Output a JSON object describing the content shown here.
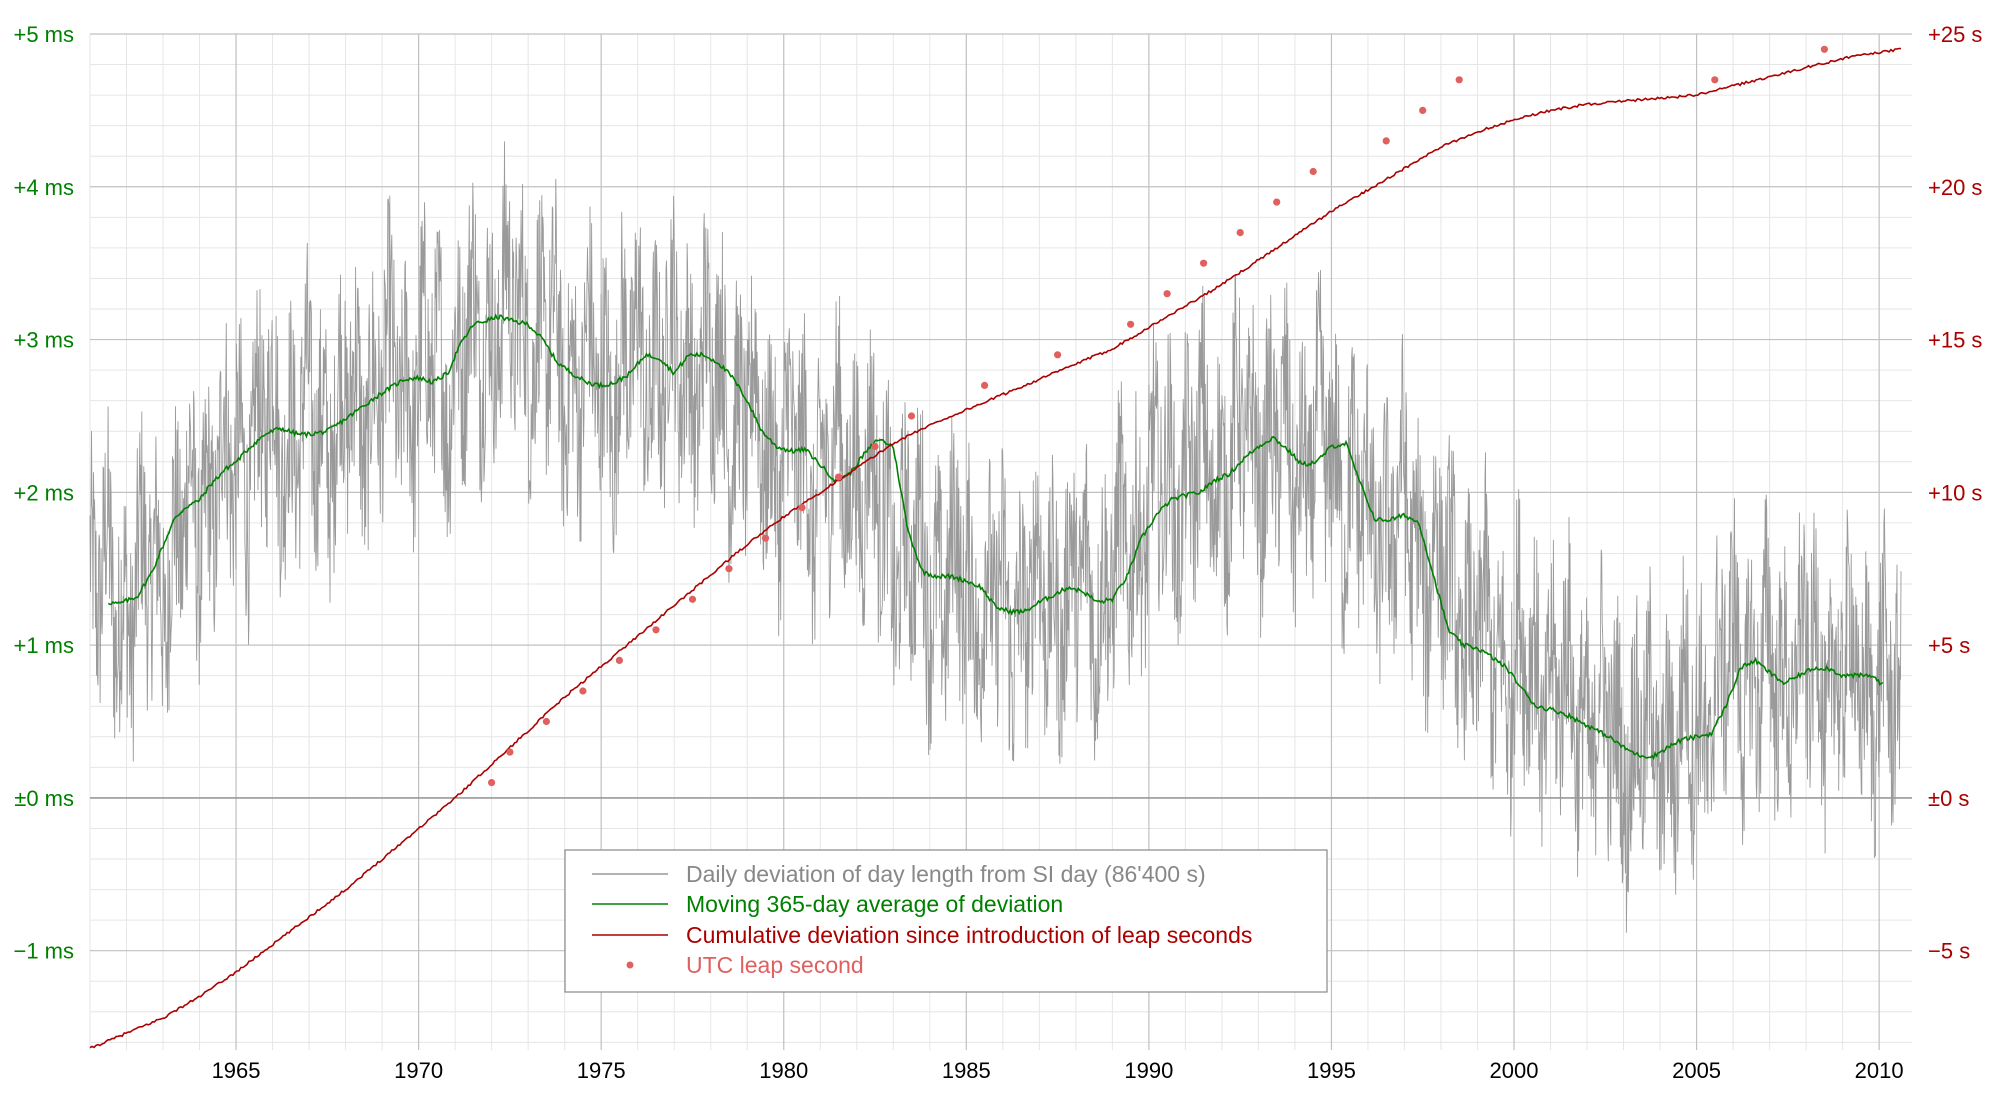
{
  "chart_data": {
    "type": "line",
    "title": "",
    "x_range": [
      1961.0,
      2010.9
    ],
    "x_ticks": [
      "1965",
      "1970",
      "1975",
      "1980",
      "1985",
      "1990",
      "1995",
      "2000",
      "2005",
      "2010"
    ],
    "left_axis": {
      "range": [
        -1.65,
        5.0
      ],
      "unit": "ms",
      "ticks": [
        {
          "v": 5,
          "label": "+5 ms"
        },
        {
          "v": 4,
          "label": "+4 ms"
        },
        {
          "v": 3,
          "label": "+3 ms"
        },
        {
          "v": 2,
          "label": "+2 ms"
        },
        {
          "v": 1,
          "label": "+1 ms"
        },
        {
          "v": 0,
          "label": "±0 ms"
        },
        {
          "v": -1,
          "label": "−1 ms"
        }
      ]
    },
    "right_axis": {
      "range": [
        -8.25,
        25.0
      ],
      "unit": "s",
      "ticks": [
        {
          "v": 25,
          "label": "+25 s"
        },
        {
          "v": 20,
          "label": "+20 s"
        },
        {
          "v": 15,
          "label": "+15 s"
        },
        {
          "v": 10,
          "label": "+10 s"
        },
        {
          "v": 5,
          "label": "+5 s"
        },
        {
          "v": 0,
          "label": "±0 s"
        },
        {
          "v": -5,
          "label": "−5 s"
        }
      ]
    },
    "grid": true,
    "legend_position": "bottom-center",
    "colors": {
      "daily": "#9a9a9a",
      "average": "#008000",
      "cumulative": "#aa0000",
      "leap": "#e06060",
      "grid_minor": "#e6e6e6",
      "grid_major": "#c0c0c0"
    },
    "series": [
      {
        "name": "Daily deviation of day length from SI day (86'400 s)",
        "axis": "left",
        "style": "noisy-line",
        "x": [
          1961.0,
          1962.0,
          1963.0,
          1964.0,
          1965.0,
          1966.0,
          1967.0,
          1968.0,
          1969.0,
          1970.0,
          1971.0,
          1972.0,
          1973.0,
          1974.0,
          1975.0,
          1976.0,
          1977.0,
          1978.0,
          1979.0,
          1980.0,
          1981.0,
          1982.0,
          1983.0,
          1984.0,
          1985.0,
          1986.0,
          1987.0,
          1988.0,
          1989.0,
          1990.0,
          1991.0,
          1992.0,
          1993.0,
          1994.0,
          1995.0,
          1996.0,
          1997.0,
          1998.0,
          1999.0,
          2000.0,
          2001.0,
          2002.0,
          2003.0,
          2004.0,
          2005.0,
          2006.0,
          2007.0,
          2008.0,
          2009.0,
          2010.0,
          2010.6
        ],
        "y": [
          1.4,
          1.3,
          1.5,
          1.9,
          2.2,
          2.45,
          2.4,
          2.5,
          2.7,
          2.75,
          2.85,
          3.15,
          3.1,
          2.8,
          2.7,
          2.85,
          2.85,
          2.8,
          2.45,
          2.25,
          2.1,
          2.2,
          1.7,
          1.45,
          1.4,
          1.2,
          1.3,
          1.35,
          1.4,
          1.95,
          2.1,
          2.2,
          2.35,
          2.2,
          2.25,
          1.8,
          1.8,
          1.45,
          1.0,
          0.9,
          0.75,
          0.55,
          0.35,
          0.35,
          0.45,
          0.9,
          0.8,
          0.85,
          0.8,
          0.75,
          0.5
        ],
        "amplitude_ms": 0.75
      },
      {
        "name": "Moving 365-day average of deviation",
        "axis": "left",
        "x": [
          1961.5,
          1961.8,
          1962.3,
          1962.7,
          1963.0,
          1963.3,
          1963.6,
          1964.0,
          1964.3,
          1964.7,
          1965.0,
          1965.4,
          1965.8,
          1966.2,
          1966.7,
          1967.0,
          1967.5,
          1968.0,
          1968.4,
          1968.8,
          1969.2,
          1969.6,
          1970.0,
          1970.4,
          1970.8,
          1971.1,
          1971.5,
          1971.8,
          1972.2,
          1972.6,
          1973.0,
          1973.4,
          1973.8,
          1974.2,
          1974.6,
          1975.0,
          1975.4,
          1975.8,
          1976.2,
          1976.6,
          1977.0,
          1977.4,
          1977.8,
          1978.2,
          1978.6,
          1979.0,
          1979.4,
          1979.8,
          1980.2,
          1980.6,
          1981.0,
          1981.4,
          1981.8,
          1982.2,
          1982.6,
          1983.0,
          1983.4,
          1983.8,
          1984.2,
          1984.6,
          1985.0,
          1985.4,
          1985.8,
          1986.2,
          1986.6,
          1987.0,
          1987.4,
          1987.8,
          1988.2,
          1988.6,
          1989.0,
          1989.4,
          1989.8,
          1990.2,
          1990.6,
          1991.0,
          1991.4,
          1991.8,
          1992.2,
          1992.6,
          1993.0,
          1993.4,
          1993.8,
          1994.2,
          1994.6,
          1995.0,
          1995.4,
          1995.8,
          1996.2,
          1996.6,
          1997.0,
          1997.4,
          1997.8,
          1998.2,
          1998.6,
          1999.0,
          1999.4,
          1999.8,
          2000.2,
          2000.6,
          2001.0,
          2001.4,
          2001.8,
          2002.2,
          2002.6,
          2003.0,
          2003.4,
          2003.8,
          2004.2,
          2004.6,
          2005.0,
          2005.4,
          2005.8,
          2006.2,
          2006.6,
          2007.0,
          2007.4,
          2007.8,
          2008.2,
          2008.6,
          2009.0,
          2009.4,
          2009.8,
          2010.1
        ],
        "y": [
          1.28,
          1.27,
          1.32,
          1.48,
          1.65,
          1.82,
          1.9,
          1.95,
          2.05,
          2.15,
          2.2,
          2.3,
          2.38,
          2.42,
          2.38,
          2.38,
          2.4,
          2.48,
          2.55,
          2.62,
          2.68,
          2.74,
          2.75,
          2.72,
          2.78,
          2.95,
          3.1,
          3.12,
          3.15,
          3.12,
          3.1,
          3.0,
          2.85,
          2.78,
          2.72,
          2.7,
          2.72,
          2.78,
          2.9,
          2.88,
          2.78,
          2.9,
          2.9,
          2.85,
          2.75,
          2.6,
          2.4,
          2.3,
          2.27,
          2.28,
          2.18,
          2.08,
          2.12,
          2.25,
          2.35,
          2.3,
          1.75,
          1.48,
          1.45,
          1.45,
          1.42,
          1.38,
          1.25,
          1.22,
          1.22,
          1.28,
          1.33,
          1.38,
          1.35,
          1.28,
          1.3,
          1.45,
          1.7,
          1.85,
          1.95,
          1.98,
          2.0,
          2.08,
          2.12,
          2.22,
          2.3,
          2.36,
          2.28,
          2.18,
          2.2,
          2.3,
          2.32,
          2.05,
          1.82,
          1.82,
          1.85,
          1.8,
          1.45,
          1.1,
          1.0,
          0.98,
          0.92,
          0.85,
          0.72,
          0.6,
          0.58,
          0.55,
          0.5,
          0.45,
          0.4,
          0.33,
          0.28,
          0.27,
          0.33,
          0.38,
          0.4,
          0.42,
          0.6,
          0.85,
          0.9,
          0.82,
          0.75,
          0.8,
          0.85,
          0.85,
          0.8,
          0.8,
          0.8,
          0.74
        ]
      },
      {
        "name": "Cumulative deviation since introduction of leap seconds",
        "axis": "right",
        "x": [
          1961.0,
          1962.0,
          1963.0,
          1964.0,
          1965.0,
          1966.0,
          1967.0,
          1968.0,
          1969.0,
          1970.0,
          1971.0,
          1972.0,
          1973.0,
          1974.0,
          1975.0,
          1976.0,
          1977.0,
          1978.0,
          1979.0,
          1980.0,
          1981.0,
          1982.0,
          1983.0,
          1984.0,
          1985.0,
          1986.0,
          1987.0,
          1988.0,
          1989.0,
          1990.0,
          1991.0,
          1992.0,
          1993.0,
          1994.0,
          1995.0,
          1996.0,
          1997.0,
          1998.0,
          1999.0,
          2000.0,
          2001.0,
          2002.0,
          2003.0,
          2004.0,
          2005.0,
          2006.0,
          2007.0,
          2008.0,
          2009.0,
          2010.0,
          2010.6
        ],
        "y": [
          -8.2,
          -7.7,
          -7.2,
          -6.5,
          -5.7,
          -4.8,
          -3.9,
          -3.0,
          -2.0,
          -1.0,
          0.0,
          1.1,
          2.2,
          3.3,
          4.3,
          5.3,
          6.3,
          7.3,
          8.3,
          9.2,
          10.0,
          10.8,
          11.6,
          12.2,
          12.7,
          13.2,
          13.7,
          14.2,
          14.7,
          15.4,
          16.1,
          16.8,
          17.6,
          18.4,
          19.2,
          19.9,
          20.6,
          21.3,
          21.8,
          22.2,
          22.5,
          22.7,
          22.8,
          22.9,
          23.0,
          23.3,
          23.6,
          23.9,
          24.2,
          24.4,
          24.5
        ]
      },
      {
        "name": "UTC leap second",
        "axis": "right",
        "style": "points",
        "x": [
          1972.0,
          1972.5,
          1973.5,
          1974.5,
          1975.5,
          1976.5,
          1977.5,
          1978.5,
          1979.5,
          1980.5,
          1981.5,
          1982.5,
          1983.5,
          1985.5,
          1987.5,
          1989.5,
          1990.5,
          1991.5,
          1992.5,
          1993.5,
          1994.5,
          1996.5,
          1997.5,
          1998.5,
          2005.5,
          2008.5
        ],
        "y": [
          0.5,
          1.5,
          2.5,
          3.5,
          4.5,
          5.5,
          6.5,
          7.5,
          8.5,
          9.5,
          10.5,
          11.5,
          12.5,
          13.5,
          14.5,
          15.5,
          16.5,
          17.5,
          18.5,
          19.5,
          20.5,
          21.5,
          22.5,
          23.5,
          23.5,
          24.5
        ]
      }
    ]
  }
}
